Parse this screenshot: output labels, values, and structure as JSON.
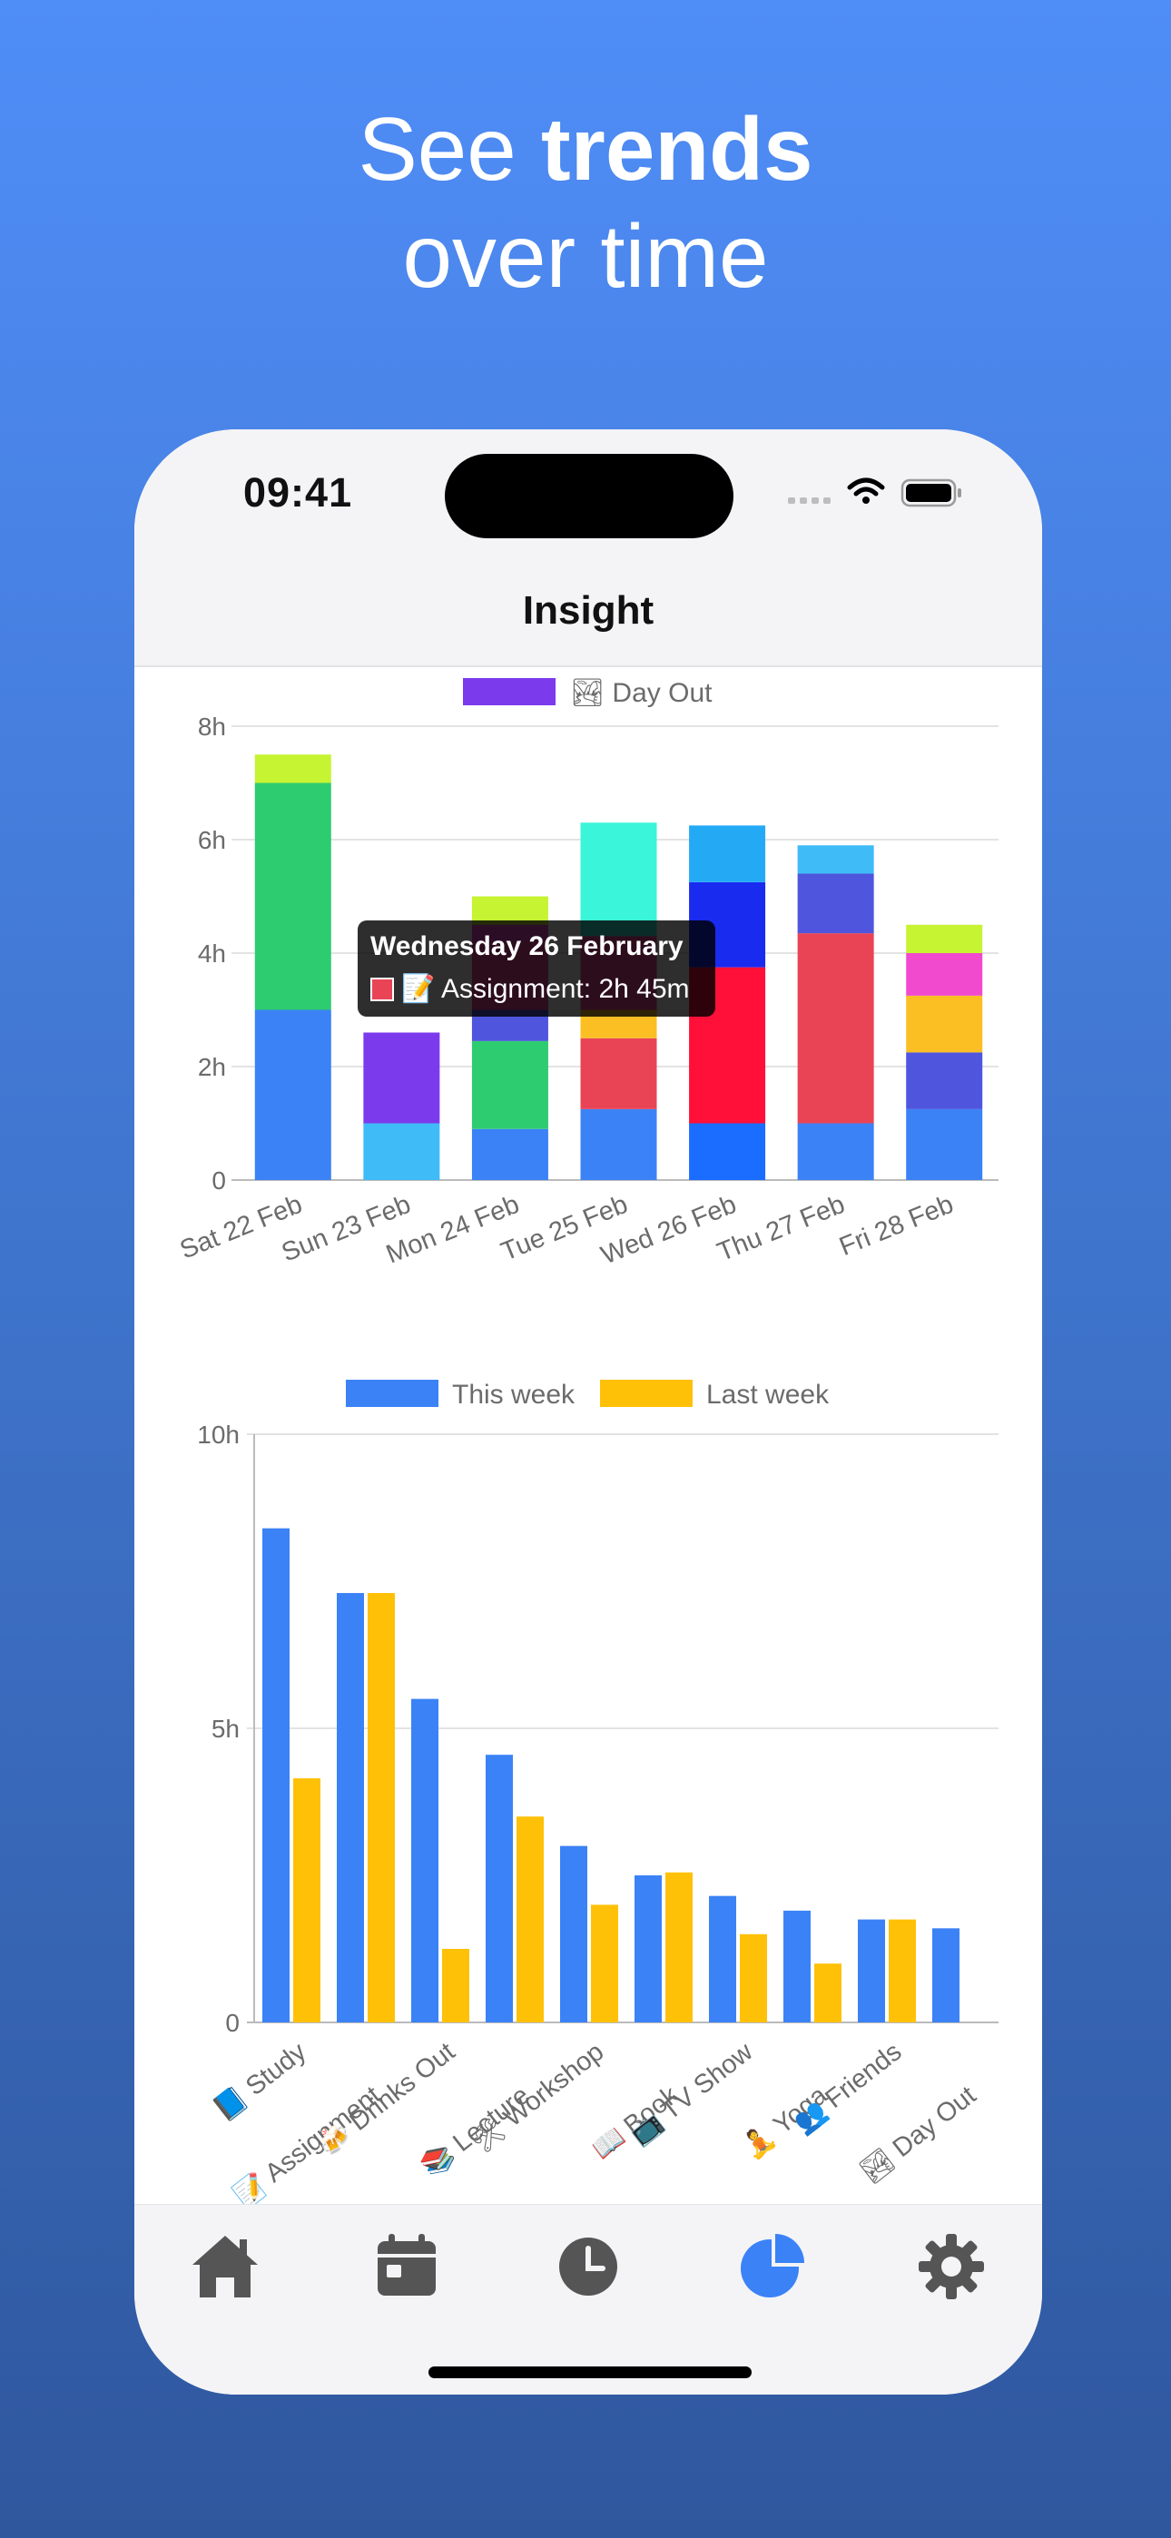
{
  "headline": {
    "prefix": "See ",
    "bold": "trends",
    "line2": "over time"
  },
  "status_bar": {
    "time": "09:41"
  },
  "nav": {
    "title": "Insight"
  },
  "colors": {
    "accent": "#3B82F6",
    "background_top": "#4F8DF7",
    "background_bottom": "#2F579E"
  },
  "chart_data": [
    {
      "type": "bar",
      "stacked": true,
      "legend": [
        {
          "name": "🏞 Day Out",
          "color": "#7C3AED"
        }
      ],
      "categories": [
        "Sat 22 Feb",
        "Sun 23 Feb",
        "Mon 24 Feb",
        "Tue 25 Feb",
        "Wed 26 Feb",
        "Thu 27 Feb",
        "Fri 28 Feb"
      ],
      "y_ticks": [
        "0",
        "2h",
        "4h",
        "6h",
        "8h"
      ],
      "ylim": [
        0,
        8
      ],
      "segments": [
        [
          {
            "value": 3.0,
            "color": "#3B82F6"
          },
          {
            "value": 4.0,
            "color": "#2ECC71"
          },
          {
            "value": 0.5,
            "color": "#C6F432"
          }
        ],
        [
          {
            "value": 1.0,
            "color": "#3FBBF7"
          },
          {
            "value": 1.6,
            "color": "#7C3AED"
          }
        ],
        [
          {
            "value": 0.9,
            "color": "#3B82F6"
          },
          {
            "value": 1.55,
            "color": "#2ECC71"
          },
          {
            "value": 0.55,
            "color": "#4F55DD"
          },
          {
            "value": 1.2,
            "color": "#F14A9B"
          },
          {
            "value": 0.3,
            "color": "#F14ACF"
          },
          {
            "value": 0.5,
            "color": "#C6F432"
          }
        ],
        [
          {
            "value": 1.25,
            "color": "#3B82F6"
          },
          {
            "value": 1.25,
            "color": "#E94456"
          },
          {
            "value": 0.5,
            "color": "#FBBF24"
          },
          {
            "value": 1.3,
            "color": "#F14A9B"
          },
          {
            "value": 2.0,
            "color": "#3BF5DA"
          }
        ],
        [
          {
            "value": 1.0,
            "color": "#1A6DFF"
          },
          {
            "value": 2.75,
            "color": "#FF1038"
          },
          {
            "value": 1.5,
            "color": "#1A2BF0"
          },
          {
            "value": 1.0,
            "color": "#24AAF5"
          }
        ],
        [
          {
            "value": 1.0,
            "color": "#3B82F6"
          },
          {
            "value": 3.35,
            "color": "#E94456"
          },
          {
            "value": 1.05,
            "color": "#4F55DD"
          },
          {
            "value": 0.5,
            "color": "#3FBBF7"
          }
        ],
        [
          {
            "value": 1.25,
            "color": "#3B82F6"
          },
          {
            "value": 1.0,
            "color": "#4F55DD"
          },
          {
            "value": 1.0,
            "color": "#FBBF24"
          },
          {
            "value": 0.75,
            "color": "#F14ACF"
          },
          {
            "value": 0.5,
            "color": "#C6F432"
          }
        ]
      ],
      "tooltip": {
        "title": "Wednesday 26 February",
        "label": "📝 Assignment: 2h 45m",
        "swatch_color": "#E94456"
      }
    },
    {
      "type": "bar",
      "categories": [
        "📘 Study",
        "📝 Assignment",
        "🍻 Drinks Out",
        "📚 Lecture",
        "🛠 Workshop",
        "📖 Book",
        "📺 TV Show",
        "🧘 Yoga",
        "👥 Friends",
        "🏞 Day Out"
      ],
      "y_ticks": [
        "0",
        "5h",
        "10h"
      ],
      "ylim": [
        0,
        10
      ],
      "series": [
        {
          "name": "This week",
          "color": "#3B82F6",
          "values": [
            8.4,
            7.3,
            5.5,
            4.55,
            3.0,
            2.5,
            2.15,
            1.9,
            1.75,
            1.6
          ]
        },
        {
          "name": "Last week",
          "color": "#FFC107",
          "values": [
            4.15,
            7.3,
            1.25,
            3.5,
            2.0,
            2.55,
            1.5,
            1.0,
            1.75,
            0
          ]
        }
      ]
    }
  ],
  "tabs": [
    {
      "icon": "home-icon",
      "active": false
    },
    {
      "icon": "calendar-icon",
      "active": false
    },
    {
      "icon": "clock-icon",
      "active": false
    },
    {
      "icon": "pie-chart-icon",
      "active": true
    },
    {
      "icon": "gear-icon",
      "active": false
    }
  ]
}
